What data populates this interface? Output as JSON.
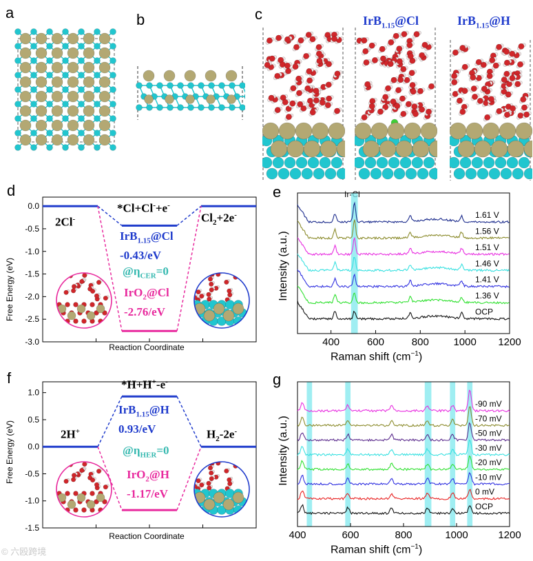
{
  "panel_labels": {
    "a": "a",
    "b": "b",
    "c": "c",
    "d": "d",
    "e": "e",
    "f": "f",
    "g": "g"
  },
  "panel_c": {
    "title_cl": "IrB1.15@Cl",
    "title_h": "IrB1.15@H",
    "title_cl_base": "IrB",
    "title_cl_sub": "1.15",
    "title_cl_tail": "@Cl",
    "title_h_base": "IrB",
    "title_h_sub": "1.15",
    "title_h_tail": "@H"
  },
  "colors": {
    "boron": "#21c6cf",
    "iridium": "#b3a873",
    "oxygen": "#d0262a",
    "hydrogen": "#f2e6e6",
    "chlorine": "#3fcf36",
    "irb_line": "#1f3bcc",
    "iro2_line": "#e8299d",
    "highlight": "#7fe8ee",
    "eta_text": "#36b9b0"
  },
  "watermark": "© 六殴跨境",
  "chart_data": [
    {
      "id": "d",
      "type": "line",
      "ylabel": "Free Energy (eV)",
      "xlabel": "Reaction Coordinate",
      "ylim": [
        -3.0,
        0.2
      ],
      "yticks": [
        "0.0",
        "-0.5",
        "-1.0",
        "-1.5",
        "-2.0",
        "-2.5",
        "-3.0"
      ],
      "states": [
        "2Cl-",
        "*Cl+Cl-+e-",
        "Cl2+2e-"
      ],
      "state_left": "2Cl",
      "state_left_sup": "-",
      "state_mid": "*Cl+Cl",
      "state_mid_sup1": "-",
      "state_mid_tail": "+e",
      "state_mid_sup2": "-",
      "state_right": "Cl",
      "state_right_sub": "2",
      "state_right_tail": "+2e",
      "state_right_sup": "-",
      "series": [
        {
          "name": "IrB1.15@Cl",
          "values": [
            0.0,
            -0.43,
            0.0
          ]
        },
        {
          "name": "IrO2@Cl",
          "values": [
            0.0,
            -2.76,
            0.0
          ]
        }
      ],
      "annot_irb": "IrB1.15@Cl",
      "annot_irb_base": "IrB",
      "annot_irb_sub": "1.15",
      "annot_irb_tail": "@Cl",
      "annot_irb_val": "-0.43/eV",
      "annot_eta_prefix": "@η",
      "annot_eta_sub": "CER",
      "annot_eta_tail": "=0",
      "annot_iro2_base": "IrO",
      "annot_iro2_sub": "2",
      "annot_iro2_tail": "@Cl",
      "annot_iro2_val": "-2.76/eV"
    },
    {
      "id": "e",
      "type": "line",
      "ylabel": "Intensity (a.u.)",
      "xlabel": "Raman shift (cm",
      "xlabel_sup": "−1",
      "xlabel_tail": ")",
      "xlim": [
        250,
        1200
      ],
      "xticks": [
        400,
        600,
        800,
        1000,
        1200
      ],
      "annotation": "Ir-Cl",
      "highlight_x": [
        490,
        520
      ],
      "series": [
        {
          "name": "1.61 V",
          "color": "#1a2a8c"
        },
        {
          "name": "1.56 V",
          "color": "#8a8a2a"
        },
        {
          "name": "1.51 V",
          "color": "#e82de0"
        },
        {
          "name": "1.46 V",
          "color": "#36e0e0"
        },
        {
          "name": "1.41 V",
          "color": "#2f2fe0"
        },
        {
          "name": "1.36 V",
          "color": "#2fe02f"
        },
        {
          "name": "OCP",
          "color": "#111111"
        }
      ],
      "peaks": [
        418,
        505,
        755,
        985
      ]
    },
    {
      "id": "f",
      "type": "line",
      "ylabel": "Free Energy (eV)",
      "xlabel": "Reaction Coordinate",
      "ylim": [
        -1.5,
        1.2
      ],
      "yticks": [
        "1.0",
        "0.5",
        "0.0",
        "-0.5",
        "-1.0",
        "-1.5"
      ],
      "states": [
        "2H+",
        "*H+H+-e-",
        "H2-2e-"
      ],
      "state_left": "2H",
      "state_left_sup": "+",
      "state_mid": "*H+H",
      "state_mid_sup1": "+",
      "state_mid_tail": "-e",
      "state_mid_sup2": "-",
      "state_right": "H",
      "state_right_sub": "2",
      "state_right_tail": "-2e",
      "state_right_sup": "-",
      "series": [
        {
          "name": "IrB1.15@H",
          "values": [
            0.0,
            0.93,
            0.0
          ]
        },
        {
          "name": "IrO2@H",
          "values": [
            0.0,
            -1.17,
            0.0
          ]
        }
      ],
      "annot_irb_base": "IrB",
      "annot_irb_sub": "1.15",
      "annot_irb_tail": "@H",
      "annot_irb_val": "0.93/eV",
      "annot_eta_prefix": "@η",
      "annot_eta_sub": "HER",
      "annot_eta_tail": "=0",
      "annot_iro2_base": "IrO",
      "annot_iro2_sub": "2",
      "annot_iro2_tail": "@H",
      "annot_iro2_val": "-1.17/eV"
    },
    {
      "id": "g",
      "type": "line",
      "ylabel": "Intensity (a.u.)",
      "xlabel": "Raman shift (cm",
      "xlabel_sup": "−1",
      "xlabel_tail": ")",
      "xlim": [
        400,
        1200
      ],
      "xticks": [
        400,
        600,
        800,
        1000,
        1200
      ],
      "highlight_x": [
        [
          435,
          455
        ],
        [
          580,
          600
        ],
        [
          880,
          905
        ],
        [
          975,
          995
        ],
        [
          1040,
          1060
        ]
      ],
      "series": [
        {
          "name": "-90 mV",
          "color": "#e82de0"
        },
        {
          "name": "-70 mV",
          "color": "#8a8a2a"
        },
        {
          "name": "-50 mV",
          "color": "#5a2a8c"
        },
        {
          "name": "-30 mV",
          "color": "#36e0e0"
        },
        {
          "name": "-20 mV",
          "color": "#2fe02f"
        },
        {
          "name": "-10 mV",
          "color": "#2f2fe0"
        },
        {
          "name": "0 mV",
          "color": "#e82020"
        },
        {
          "name": "OCP",
          "color": "#111111"
        }
      ],
      "peaks": [
        418,
        590,
        755,
        890,
        985,
        1050
      ]
    }
  ]
}
